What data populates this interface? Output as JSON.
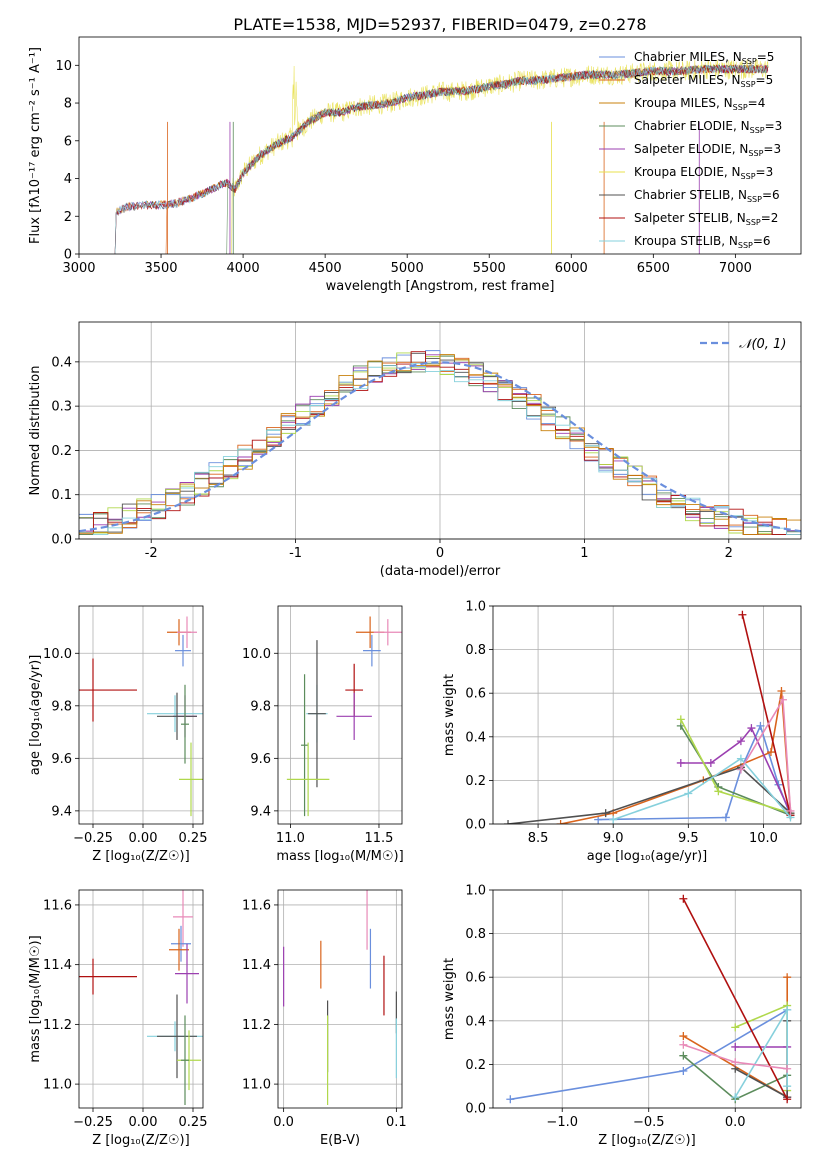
{
  "figure_title": "PLATE=1538, MJD=52937, FIBERID=0479, z=0.278",
  "palette": [
    "#6a8fdd",
    "#d9641c",
    "#5c8c5c",
    "#9b3fb0",
    "#b0d84c",
    "#505050",
    "#b01010",
    "#86d0dc",
    "#e88ab8"
  ],
  "legend_spectrum": [
    {
      "name": "Chabrier MILES",
      "nssp": "5",
      "color": "#6a8fdd"
    },
    {
      "name": "Salpeter MILES",
      "nssp": "5",
      "color": "#d9641c"
    },
    {
      "name": "Kroupa MILES",
      "nssp": "4",
      "color": "#c8800c"
    },
    {
      "name": "Chabrier ELODIE",
      "nssp": "3",
      "color": "#5c8c5c"
    },
    {
      "name": "Salpeter ELODIE",
      "nssp": "3",
      "color": "#9b3fb0"
    },
    {
      "name": "Kroupa ELODIE",
      "nssp": "3",
      "color": "#e8e04c"
    },
    {
      "name": "Chabrier STELIB",
      "nssp": "6",
      "color": "#505050"
    },
    {
      "name": "Salpeter STELIB",
      "nssp": "2",
      "color": "#b01010"
    },
    {
      "name": "Kroupa STELIB",
      "nssp": "6",
      "color": "#86d0dc"
    }
  ],
  "chart_data": [
    {
      "id": "spectrum",
      "type": "line",
      "xlabel": "wavelength [Angstrom, rest frame]",
      "ylabel": "Flux [fλ10⁻¹⁷ erg cm⁻² s⁻¹ A⁻¹]",
      "xlim": [
        3000,
        7400
      ],
      "ylim": [
        0,
        11.5
      ],
      "xticks": [
        3000,
        3500,
        4000,
        4500,
        5000,
        5500,
        6000,
        6500,
        7000
      ],
      "yticks": [
        0,
        2,
        4,
        6,
        8,
        10
      ],
      "envelope_x": [
        3220,
        3300,
        3400,
        3500,
        3600,
        3700,
        3800,
        3900,
        3950,
        4000,
        4100,
        4200,
        4300,
        4400,
        4500,
        4600,
        4700,
        4800,
        4900,
        5000,
        5100,
        5200,
        5300,
        5400,
        5500,
        5600,
        5700,
        5800,
        5900,
        6000,
        6100,
        6200,
        6300,
        6400,
        6500,
        6600,
        6700,
        6800,
        6900,
        7000,
        7100,
        7200
      ],
      "envelope_y": [
        2.2,
        2.5,
        2.6,
        2.6,
        2.7,
        3.0,
        3.4,
        3.8,
        3.4,
        4.3,
        5.2,
        5.8,
        6.2,
        7.0,
        7.5,
        7.5,
        7.8,
        7.9,
        8.0,
        8.3,
        8.4,
        8.6,
        8.6,
        8.7,
        8.9,
        9.0,
        9.2,
        9.2,
        9.3,
        9.4,
        9.5,
        9.5,
        9.5,
        9.6,
        9.7,
        9.7,
        9.7,
        9.8,
        9.8,
        9.8,
        9.8,
        9.8
      ]
    },
    {
      "id": "residuals",
      "type": "histogram",
      "xlabel": "(data-model)/error",
      "ylabel": "Normed distribution",
      "xlim": [
        -2.5,
        2.5
      ],
      "ylim": [
        0,
        0.49
      ],
      "xticks": [
        -2,
        -1,
        0,
        1,
        2
      ],
      "yticks": [
        0.0,
        0.1,
        0.2,
        0.3,
        0.4
      ],
      "legend": "𝒩(0, 1)",
      "bin_edges": [
        -2.5,
        -2.4,
        -2.3,
        -2.2,
        -2.1,
        -2.0,
        -1.9,
        -1.8,
        -1.7,
        -1.6,
        -1.5,
        -1.4,
        -1.3,
        -1.2,
        -1.1,
        -1.0,
        -0.9,
        -0.8,
        -0.7,
        -0.6,
        -0.5,
        -0.4,
        -0.3,
        -0.2,
        -0.1,
        0.0,
        0.1,
        0.2,
        0.3,
        0.4,
        0.5,
        0.6,
        0.7,
        0.8,
        0.9,
        1.0,
        1.1,
        1.2,
        1.3,
        1.4,
        1.5,
        1.6,
        1.7,
        1.8,
        1.9,
        2.0,
        2.1,
        2.2,
        2.3,
        2.4,
        2.5
      ]
    },
    {
      "id": "age-vs-z",
      "type": "errorbar",
      "xlabel": "Z [log₁₀(Z/Z☉)]",
      "ylabel": "age [log₁₀(age/yr)]",
      "xlim": [
        -0.32,
        0.3
      ],
      "ylim": [
        9.35,
        10.18
      ],
      "xticks": [
        -0.25,
        0.0,
        0.25
      ],
      "xticklabels": [
        "−0.25",
        "0.00",
        "0.25"
      ],
      "yticks": [
        9.4,
        9.6,
        9.8,
        10.0
      ],
      "points": [
        {
          "x": 0.18,
          "y": 10.08,
          "xerr": 0.06,
          "yerr": 0.05,
          "c": 1
        },
        {
          "x": 0.2,
          "y": 10.01,
          "xerr": 0.04,
          "yerr": 0.06,
          "c": 0
        },
        {
          "x": 0.22,
          "y": 10.08,
          "xerr": 0.05,
          "yerr": 0.06,
          "c": 8
        },
        {
          "x": -0.25,
          "y": 9.86,
          "xerr": 0.22,
          "yerr": 0.12,
          "c": 6
        },
        {
          "x": 0.21,
          "y": 9.76,
          "xerr": 0.06,
          "yerr": 0.08,
          "c": 3
        },
        {
          "x": 0.16,
          "y": 9.77,
          "xerr": 0.14,
          "yerr": 0.07,
          "c": 7
        },
        {
          "x": 0.17,
          "y": 9.76,
          "xerr": 0.1,
          "yerr": 0.09,
          "c": 5
        },
        {
          "x": 0.21,
          "y": 9.73,
          "xerr": 0.02,
          "yerr": 0.15,
          "c": 2
        },
        {
          "x": 0.24,
          "y": 9.52,
          "xerr": 0.06,
          "yerr": 0.14,
          "c": 4
        }
      ]
    },
    {
      "id": "age-vs-mass",
      "type": "errorbar",
      "xlabel": "mass [log₁₀(M/M☉)]",
      "ylabel": "",
      "xlim": [
        10.93,
        11.63
      ],
      "ylim": [
        9.35,
        10.18
      ],
      "xticks": [
        11.0,
        11.5
      ],
      "xticklabels": [
        "11.0",
        "11.5"
      ],
      "yticks": [
        9.4,
        9.6,
        9.8,
        10.0
      ],
      "points": [
        {
          "x": 11.45,
          "y": 10.08,
          "xerr": 0.08,
          "yerr": 0.06,
          "c": 1
        },
        {
          "x": 11.55,
          "y": 10.08,
          "xerr": 0.08,
          "yerr": 0.05,
          "c": 8
        },
        {
          "x": 11.46,
          "y": 10.01,
          "xerr": 0.05,
          "yerr": 0.06,
          "c": 0
        },
        {
          "x": 11.36,
          "y": 9.86,
          "xerr": 0.05,
          "yerr": 0.1,
          "c": 6
        },
        {
          "x": 11.36,
          "y": 9.76,
          "xerr": 0.1,
          "yerr": 0.09,
          "c": 3
        },
        {
          "x": 11.15,
          "y": 9.77,
          "xerr": 0.06,
          "yerr": 0.11,
          "c": 7
        },
        {
          "x": 11.15,
          "y": 9.77,
          "xerr": 0.05,
          "yerr": 0.28,
          "c": 5
        },
        {
          "x": 11.08,
          "y": 9.65,
          "xerr": 0.02,
          "yerr": 0.27,
          "c": 2
        },
        {
          "x": 11.1,
          "y": 9.52,
          "xerr": 0.12,
          "yerr": 0.14,
          "c": 4
        }
      ]
    },
    {
      "id": "weight-vs-age",
      "type": "line",
      "xlabel": "age [log₁₀(age/yr)]",
      "ylabel": "mass weight",
      "xlim": [
        8.2,
        10.25
      ],
      "ylim": [
        0,
        1.0
      ],
      "xticks": [
        8.5,
        9.0,
        9.5,
        10.0
      ],
      "xticklabels": [
        "8.5",
        "9.0",
        "9.5",
        "10.0"
      ],
      "yticks": [
        0.0,
        0.2,
        0.4,
        0.6,
        0.8,
        1.0
      ],
      "series": [
        {
          "c": 0,
          "x": [
            8.9,
            9.75,
            9.85,
            9.98,
            10.1,
            10.18
          ],
          "y": [
            0.02,
            0.03,
            0.25,
            0.45,
            0.18,
            0.04
          ]
        },
        {
          "c": 1,
          "x": [
            8.65,
            9.0,
            9.6,
            10.05,
            10.12,
            10.18
          ],
          "y": [
            0.0,
            0.05,
            0.2,
            0.33,
            0.61,
            0.05
          ]
        },
        {
          "c": 2,
          "x": [
            9.45,
            9.7,
            10.18
          ],
          "y": [
            0.45,
            0.17,
            0.04
          ]
        },
        {
          "c": 3,
          "x": [
            9.45,
            9.65,
            9.85,
            9.92,
            10.18
          ],
          "y": [
            0.28,
            0.28,
            0.38,
            0.44,
            0.05
          ]
        },
        {
          "c": 4,
          "x": [
            9.45,
            9.7,
            10.18
          ],
          "y": [
            0.48,
            0.15,
            0.05
          ]
        },
        {
          "c": 5,
          "x": [
            8.3,
            8.95,
            9.85,
            10.18
          ],
          "y": [
            0.0,
            0.05,
            0.26,
            0.05
          ]
        },
        {
          "c": 6,
          "x": [
            9.86,
            10.18
          ],
          "y": [
            0.96,
            0.04
          ]
        },
        {
          "c": 7,
          "x": [
            9.0,
            9.5,
            9.85,
            10.18
          ],
          "y": [
            0.02,
            0.14,
            0.3,
            0.03
          ]
        },
        {
          "c": 8,
          "x": [
            9.85,
            10.13,
            10.18
          ],
          "y": [
            0.25,
            0.57,
            0.06
          ]
        }
      ]
    },
    {
      "id": "mass-vs-z",
      "type": "errorbar",
      "xlabel": "Z [log₁₀(Z/Z☉)]",
      "ylabel": "mass [log₁₀(M/M☉)]",
      "xlim": [
        -0.32,
        0.3
      ],
      "ylim": [
        10.92,
        11.65
      ],
      "xticks": [
        -0.25,
        0.0,
        0.25
      ],
      "xticklabels": [
        "−0.25",
        "0.00",
        "0.25"
      ],
      "yticks": [
        11.0,
        11.2,
        11.4,
        11.6
      ],
      "points": [
        {
          "x": 0.2,
          "y": 11.56,
          "xerr": 0.05,
          "yerr": 0.1,
          "c": 8
        },
        {
          "x": 0.19,
          "y": 11.47,
          "xerr": 0.05,
          "yerr": 0.06,
          "c": 0
        },
        {
          "x": 0.18,
          "y": 11.45,
          "xerr": 0.05,
          "yerr": 0.07,
          "c": 1
        },
        {
          "x": 0.22,
          "y": 11.37,
          "xerr": 0.06,
          "yerr": 0.1,
          "c": 3
        },
        {
          "x": -0.25,
          "y": 11.36,
          "xerr": 0.22,
          "yerr": 0.06,
          "c": 6
        },
        {
          "x": 0.16,
          "y": 11.16,
          "xerr": 0.14,
          "yerr": 0.05,
          "c": 7
        },
        {
          "x": 0.17,
          "y": 11.16,
          "xerr": 0.1,
          "yerr": 0.14,
          "c": 5
        },
        {
          "x": 0.23,
          "y": 11.08,
          "xerr": 0.06,
          "yerr": 0.1,
          "c": 4
        },
        {
          "x": 0.21,
          "y": 11.08,
          "xerr": 0.02,
          "yerr": 0.15,
          "c": 2
        }
      ]
    },
    {
      "id": "mass-vs-ebv",
      "type": "errorbar",
      "xlabel": "E(B-V)",
      "ylabel": "",
      "xlim": [
        -0.005,
        0.105
      ],
      "ylim": [
        10.92,
        11.65
      ],
      "xticks": [
        0.0,
        0.1
      ],
      "xticklabels": [
        "0.0",
        "0.1"
      ],
      "yticks": [
        11.0,
        11.2,
        11.4,
        11.6
      ],
      "points": [
        {
          "x": 0.0,
          "y": 11.36,
          "xerr": 0.0,
          "yerr": 0.1,
          "c": 3
        },
        {
          "x": 0.033,
          "y": 11.4,
          "xerr": 0.0,
          "yerr": 0.08,
          "c": 1
        },
        {
          "x": 0.039,
          "y": 11.16,
          "xerr": 0.0,
          "yerr": 0.12,
          "c": 5
        },
        {
          "x": 0.039,
          "y": 11.08,
          "xerr": 0.0,
          "yerr": 0.15,
          "c": 4
        },
        {
          "x": 0.074,
          "y": 11.55,
          "xerr": 0.0,
          "yerr": 0.1,
          "c": 8
        },
        {
          "x": 0.077,
          "y": 11.42,
          "xerr": 0.0,
          "yerr": 0.1,
          "c": 0
        },
        {
          "x": 0.089,
          "y": 11.33,
          "xerr": 0.0,
          "yerr": 0.1,
          "c": 6
        },
        {
          "x": 0.1,
          "y": 11.24,
          "xerr": 0.0,
          "yerr": 0.07,
          "c": 5
        },
        {
          "x": 0.1,
          "y": 11.12,
          "xerr": 0.0,
          "yerr": 0.1,
          "c": 7
        }
      ]
    },
    {
      "id": "weight-vs-z",
      "type": "line",
      "xlabel": "Z [log₁₀(Z/Z☉)]",
      "ylabel": "mass weight",
      "xlim": [
        -1.4,
        0.38
      ],
      "ylim": [
        0,
        1.0
      ],
      "xticks": [
        -1.0,
        -0.5,
        0.0
      ],
      "xticklabels": [
        "−1.0",
        "−0.5",
        "0.0"
      ],
      "yticks": [
        0.0,
        0.2,
        0.4,
        0.6,
        0.8,
        1.0
      ],
      "series": [
        {
          "c": 0,
          "x": [
            -1.3,
            -0.3,
            0.3
          ],
          "y": [
            0.04,
            0.17,
            0.45
          ]
        },
        {
          "c": 1,
          "x": [
            -0.3,
            0.3,
            0.3
          ],
          "y": [
            0.33,
            0.05,
            0.6
          ]
        },
        {
          "c": 2,
          "x": [
            -0.3,
            0.0,
            0.3
          ],
          "y": [
            0.24,
            0.04,
            0.15
          ]
        },
        {
          "c": 3,
          "x": [
            0.0,
            0.3,
            0.3
          ],
          "y": [
            0.28,
            0.28,
            0.05
          ]
        },
        {
          "c": 4,
          "x": [
            0.0,
            0.3,
            0.3
          ],
          "y": [
            0.37,
            0.47,
            0.08
          ]
        },
        {
          "c": 5,
          "x": [
            0.0,
            0.3,
            0.3
          ],
          "y": [
            0.18,
            0.05,
            0.4
          ]
        },
        {
          "c": 6,
          "x": [
            -0.3,
            0.3
          ],
          "y": [
            0.96,
            0.04
          ]
        },
        {
          "c": 7,
          "x": [
            0.0,
            0.3,
            0.3
          ],
          "y": [
            0.05,
            0.45,
            0.1
          ]
        },
        {
          "c": 8,
          "x": [
            -0.3,
            0.0,
            0.3
          ],
          "y": [
            0.29,
            0.21,
            0.18
          ]
        }
      ]
    }
  ]
}
